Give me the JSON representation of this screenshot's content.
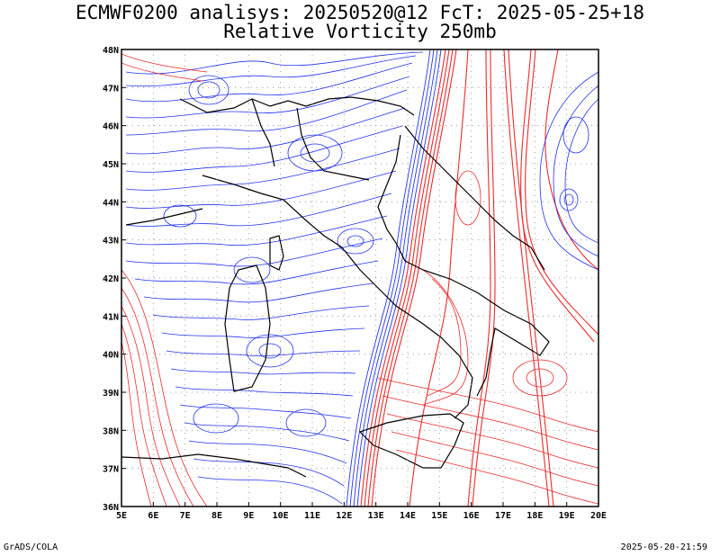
{
  "title": {
    "line1": "ECMWF0200 analisys: 20250520@12 FcT: 2025-05-25+18",
    "line2": "Relative Vorticity 250mb"
  },
  "footer": {
    "left": "GrADS/COLA",
    "right": "2025-05-20-21:59"
  },
  "map": {
    "lon_range": [
      5,
      20
    ],
    "lat_range": [
      36,
      48
    ],
    "x_tick_labels": [
      "5E",
      "6E",
      "7E",
      "8E",
      "9E",
      "10E",
      "11E",
      "12E",
      "13E",
      "14E",
      "15E",
      "16E",
      "17E",
      "18E",
      "19E",
      "20E"
    ],
    "y_tick_labels": [
      "36N",
      "37N",
      "38N",
      "39N",
      "40N",
      "41N",
      "42N",
      "43N",
      "44N",
      "45N",
      "46N",
      "47N",
      "48N"
    ],
    "grid_style": "dotted",
    "colors": {
      "negative_contours": "#2233ee",
      "positive_contours": "#ee2a2a",
      "coastlines": "#000000",
      "grid": "#888888"
    }
  }
}
